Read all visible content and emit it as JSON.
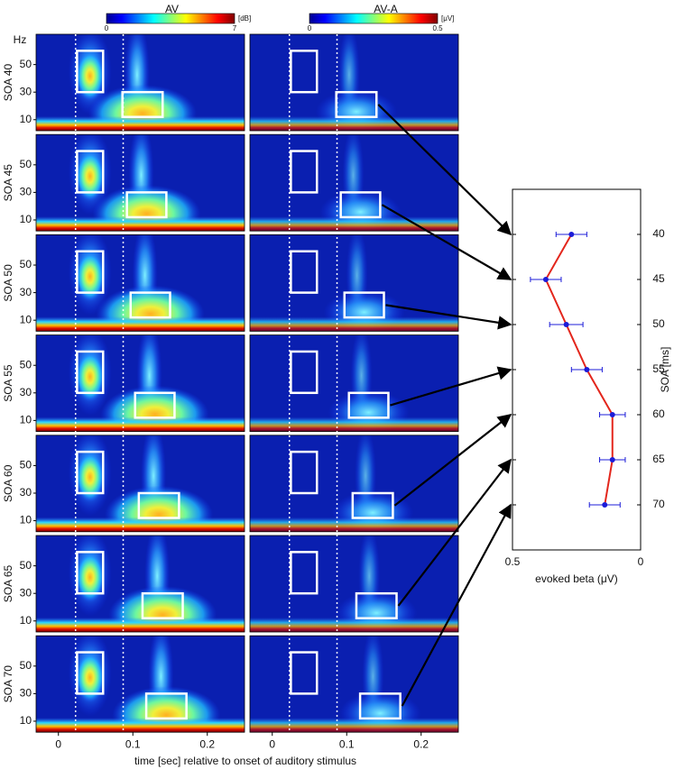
{
  "columns": [
    "AV",
    "AV-A"
  ],
  "colorbars": [
    {
      "ticks": [
        0,
        7
      ],
      "unit": "[dB]"
    },
    {
      "ticks": [
        0,
        0.5
      ],
      "unit": "[μV]"
    }
  ],
  "spectrograms": {
    "freq_label": "Hz",
    "rows": [
      "SOA 40",
      "SOA 45",
      "SOA 50",
      "SOA 55",
      "SOA 60",
      "SOA 65",
      "SOA 70"
    ],
    "ylim": [
      2,
      72
    ],
    "yticks": [
      10,
      30,
      50
    ],
    "xlim": [
      -0.03,
      0.25
    ],
    "xticks": [
      0,
      0.1,
      0.2
    ],
    "xlabel": "time [sec] relative to onset of auditory stimulus",
    "onset_lines": [
      0.023,
      0.087
    ],
    "early_window": [
      0.025,
      0.06
    ],
    "early_band": [
      30,
      60
    ],
    "late_windows": [
      [
        0.086,
        0.14
      ],
      [
        0.092,
        0.145
      ],
      [
        0.097,
        0.15
      ],
      [
        0.103,
        0.156
      ],
      [
        0.108,
        0.162
      ],
      [
        0.113,
        0.167
      ],
      [
        0.118,
        0.172
      ]
    ],
    "late_band": [
      12,
      30
    ]
  },
  "chart_data": {
    "type": "line",
    "xlabel": "evoked beta (μV)",
    "ylabel": "SOA [ms]",
    "y": [
      40,
      45,
      50,
      55,
      60,
      65,
      70
    ],
    "values": [
      0.27,
      0.37,
      0.29,
      0.21,
      0.11,
      0.11,
      0.14
    ],
    "errors": [
      0.06,
      0.06,
      0.065,
      0.06,
      0.05,
      0.05,
      0.06
    ],
    "xlim": [
      0.5,
      0
    ],
    "xticks": [
      0.5,
      0
    ],
    "ylim": [
      35,
      75
    ],
    "yticks": [
      40,
      45,
      50,
      55,
      60,
      65,
      70
    ],
    "line_color": "#e3261c",
    "marker_color": "#1c1cd8"
  }
}
